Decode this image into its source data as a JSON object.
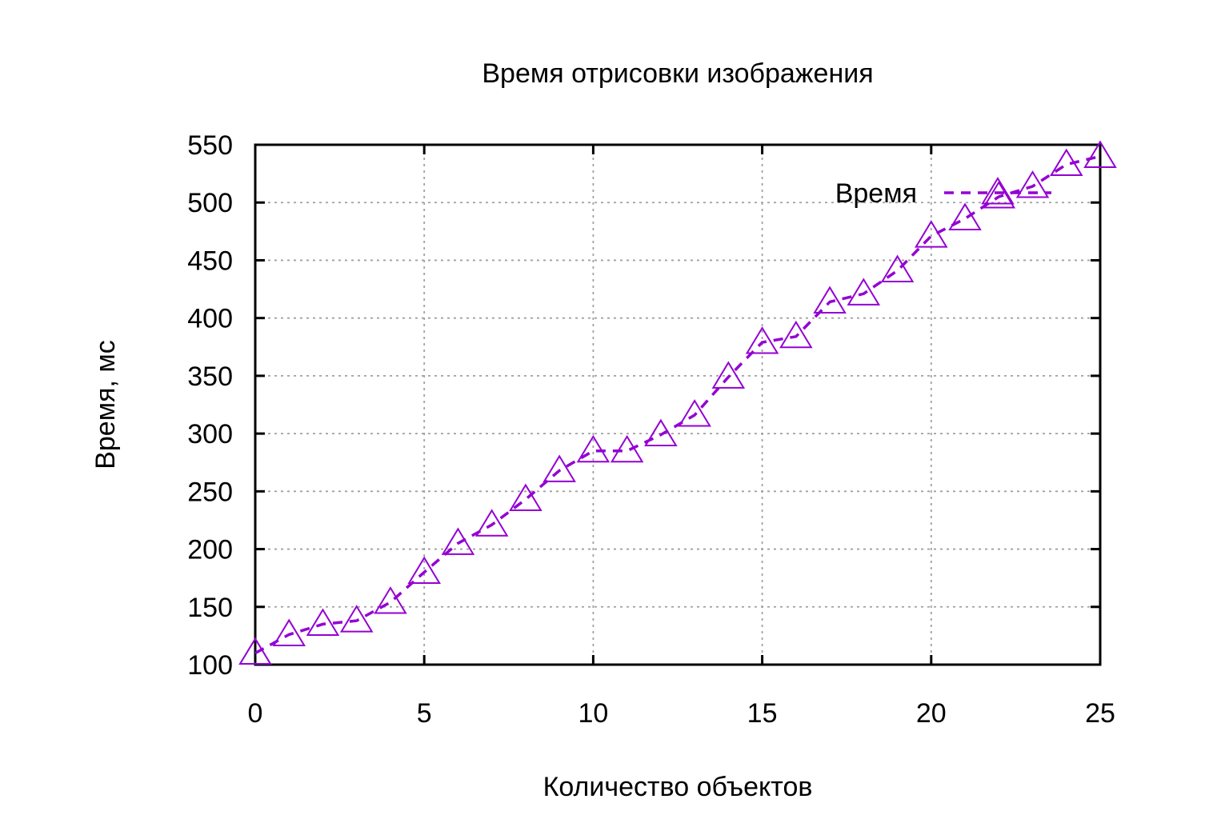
{
  "chart_data": {
    "type": "line",
    "title": "Время отрисовки изображения",
    "xlabel": "Количество объектов",
    "ylabel": "Время, мс",
    "xlim": [
      0,
      25
    ],
    "ylim": [
      100,
      550
    ],
    "xticks": [
      "0",
      "5",
      "10",
      "15",
      "20",
      "25"
    ],
    "yticks": [
      "100",
      "150",
      "200",
      "250",
      "300",
      "350",
      "400",
      "450",
      "500",
      "550"
    ],
    "grid": true,
    "legend_position": "top-right",
    "series": [
      {
        "name": "Время",
        "color": "#9400d3",
        "line_style": "dashed",
        "marker": "triangle-open",
        "x": [
          0,
          1,
          2,
          3,
          4,
          5,
          6,
          7,
          8,
          9,
          10,
          11,
          12,
          13,
          14,
          15,
          16,
          17,
          18,
          19,
          20,
          21,
          22,
          23,
          24,
          25
        ],
        "values": [
          110,
          126,
          135,
          138,
          154,
          180,
          205,
          221,
          243,
          268,
          285,
          285,
          299,
          316,
          349,
          379,
          384,
          414,
          421,
          441,
          471,
          486,
          505,
          514,
          533,
          540
        ]
      }
    ]
  }
}
